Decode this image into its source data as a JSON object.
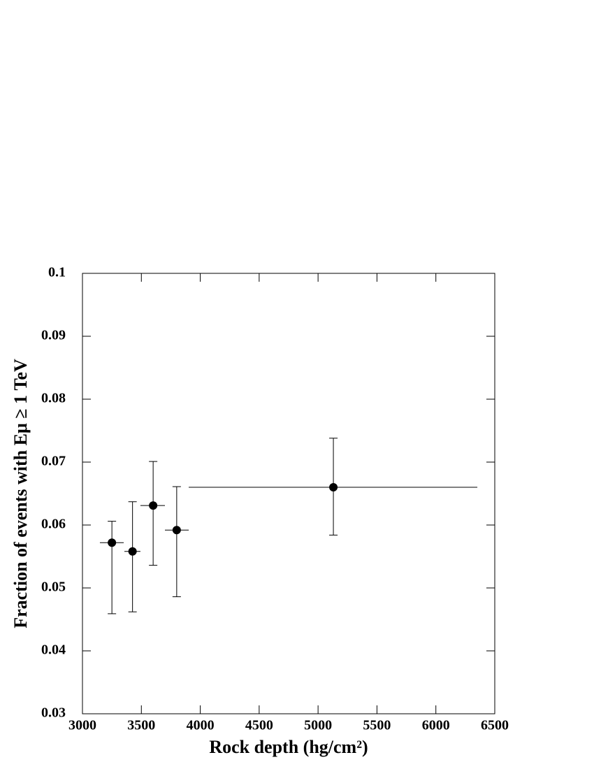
{
  "chart_data": {
    "type": "errorbar",
    "xlabel": "Rock depth (hg/cm²)",
    "ylabel": "Fraction of events with Eμ ≥ 1 TeV",
    "x": [
      3250,
      3425,
      3600,
      3800,
      5130
    ],
    "x_low": [
      3148,
      3356,
      3492,
      3700,
      3902
    ],
    "x_high": [
      3350,
      3492,
      3700,
      3902,
      6352
    ],
    "values": [
      0.0572,
      0.0558,
      0.0631,
      0.0592,
      0.066
    ],
    "y_low": [
      0.0459,
      0.0462,
      0.0536,
      0.0486,
      0.0584
    ],
    "y_high": [
      0.0606,
      0.0637,
      0.0701,
      0.0661,
      0.0738
    ],
    "color": "#000000",
    "xlim": [
      3000,
      6500
    ],
    "xticks": [
      3000,
      3500,
      4000,
      4500,
      5000,
      5500,
      6000,
      6500
    ],
    "ylim": [
      0.03,
      0.1
    ],
    "yticks": [
      0.03,
      0.04,
      0.05,
      0.06,
      0.07,
      0.08,
      0.09,
      0.1
    ]
  }
}
